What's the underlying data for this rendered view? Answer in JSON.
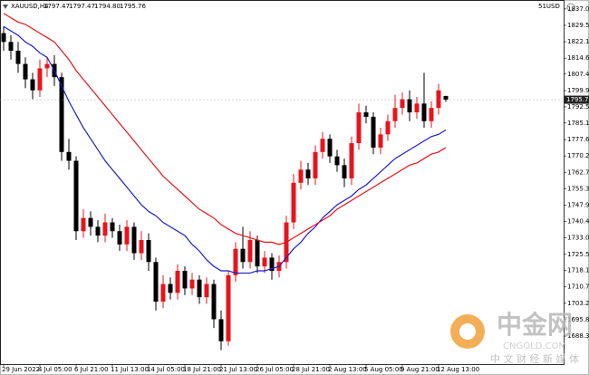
{
  "chart_data": {
    "type": "candlestick",
    "header": {
      "symbol": "XAUUSD,H4",
      "ohlc": [
        "1797.47",
        "1797.47",
        "1794.80",
        "1795.76"
      ],
      "corner": "51USD"
    },
    "categories": [
      "29 Jun 2022",
      null,
      null,
      null,
      null,
      "4 Jul 05:00",
      null,
      null,
      null,
      null,
      "6 Jul 21:00",
      null,
      null,
      null,
      null,
      "11 Jul 13:00",
      null,
      null,
      null,
      null,
      "14 Jul 05:00",
      null,
      null,
      null,
      null,
      "18 Jul 21:00",
      null,
      null,
      null,
      null,
      "21 Jul 13:00",
      null,
      null,
      null,
      null,
      "26 Jul 05:00",
      null,
      null,
      null,
      null,
      "28 Jul 21:00",
      null,
      null,
      null,
      null,
      "2 Aug 13:00",
      null,
      null,
      null,
      null,
      "5 Aug 05:00",
      null,
      null,
      null,
      null,
      "9 Aug 21:00",
      null,
      null,
      null,
      null,
      "12 Aug 13:00",
      null
    ],
    "open": [
      1826,
      1822,
      1818,
      1812,
      1805,
      1800,
      1810,
      1812,
      1806,
      1772,
      1768,
      1736,
      1742,
      1738,
      1734,
      1740,
      1736,
      1730,
      1738,
      1726,
      1732,
      1722,
      1704,
      1712,
      1708,
      1718,
      1710,
      1714,
      1706,
      1712,
      1696,
      1686,
      1716,
      1728,
      1722,
      1732,
      1720,
      1724,
      1718,
      1722,
      1740,
      1758,
      1764,
      1760,
      1772,
      1778,
      1770,
      1766,
      1760,
      1776,
      1790,
      1788,
      1774,
      1780,
      1786,
      1792,
      1796,
      1790,
      1794,
      1786,
      1792,
      1797.47
    ],
    "high": [
      1829,
      1825,
      1822,
      1815,
      1808,
      1814,
      1815,
      1816,
      1808,
      1778,
      1770,
      1746,
      1745,
      1741,
      1744,
      1742,
      1739,
      1741,
      1740,
      1736,
      1735,
      1724,
      1716,
      1715,
      1721,
      1720,
      1717,
      1716,
      1715,
      1714,
      1700,
      1718,
      1731,
      1738,
      1736,
      1734,
      1727,
      1726,
      1725,
      1743,
      1762,
      1768,
      1767,
      1775,
      1781,
      1780,
      1773,
      1769,
      1779,
      1794,
      1793,
      1790,
      1783,
      1789,
      1798,
      1799,
      1800,
      1797,
      1808,
      1795,
      1803,
      1797.47
    ],
    "low": [
      1818,
      1814,
      1808,
      1801,
      1796,
      1797,
      1806,
      1802,
      1768,
      1764,
      1732,
      1733,
      1734,
      1731,
      1731,
      1733,
      1727,
      1727,
      1723,
      1723,
      1718,
      1700,
      1701,
      1705,
      1705,
      1707,
      1707,
      1703,
      1703,
      1692,
      1682,
      1684,
      1713,
      1719,
      1719,
      1717,
      1717,
      1714,
      1715,
      1719,
      1737,
      1755,
      1757,
      1757,
      1769,
      1767,
      1763,
      1756,
      1757,
      1773,
      1785,
      1771,
      1771,
      1777,
      1783,
      1789,
      1786,
      1787,
      1783,
      1783,
      1789,
      1794.8
    ],
    "close": [
      1822,
      1818,
      1812,
      1805,
      1800,
      1810,
      1812,
      1806,
      1772,
      1768,
      1736,
      1742,
      1738,
      1734,
      1740,
      1736,
      1730,
      1738,
      1726,
      1732,
      1722,
      1704,
      1712,
      1708,
      1718,
      1710,
      1714,
      1706,
      1712,
      1696,
      1686,
      1716,
      1728,
      1722,
      1732,
      1720,
      1724,
      1718,
      1722,
      1740,
      1758,
      1764,
      1760,
      1772,
      1778,
      1770,
      1766,
      1760,
      1776,
      1790,
      1788,
      1774,
      1780,
      1786,
      1792,
      1796,
      1790,
      1794,
      1786,
      1792,
      1800,
      1795.76
    ],
    "up_color": "#e8141b",
    "down_color": "#000000",
    "series": [
      {
        "color": "#1c1ccc",
        "values": [
          1829,
          1827,
          1825,
          1822,
          1820,
          1817,
          1815,
          1809,
          1802,
          1795,
          1789,
          1783,
          1778,
          1773,
          1768,
          1764,
          1760,
          1756,
          1752,
          1748,
          1745,
          1743,
          1740,
          1738,
          1736,
          1734,
          1730,
          1727,
          1723,
          1720,
          1718,
          1718,
          1717,
          1717,
          1717,
          1718,
          1718,
          1719,
          1720,
          1724,
          1728,
          1731,
          1735,
          1738,
          1742,
          1745,
          1748,
          1750,
          1752,
          1755,
          1757,
          1760,
          1763,
          1766,
          1769,
          1771,
          1773,
          1775,
          1777,
          1779,
          1780,
          1782
        ]
      },
      {
        "color": "#e8141b",
        "values": [
          1835,
          1833,
          1831,
          1830,
          1828,
          1826,
          1824,
          1822,
          1818,
          1814,
          1809,
          1805,
          1801,
          1797,
          1793,
          1789,
          1785,
          1781,
          1777,
          1773,
          1769,
          1765,
          1761,
          1758,
          1755,
          1752,
          1749,
          1746,
          1744,
          1742,
          1739,
          1737,
          1735,
          1734,
          1733,
          1732,
          1731,
          1731,
          1730,
          1731,
          1733,
          1735,
          1737,
          1739,
          1741,
          1743,
          1746,
          1748,
          1750,
          1752,
          1754,
          1756,
          1758,
          1760,
          1762,
          1764,
          1766,
          1767,
          1769,
          1771,
          1772,
          1774
        ]
      }
    ],
    "current_price": 1795.76,
    "ylim": [
      1675.6,
      1839
    ],
    "yticks": [
      {
        "value": 1837,
        "label": "1837.00"
      },
      {
        "value": 1829.55,
        "label": "1829.55"
      },
      {
        "value": 1822.1,
        "label": "1822.10"
      },
      {
        "value": 1814.65,
        "label": "1814.65"
      },
      {
        "value": 1807.4,
        "label": "1807.40"
      },
      {
        "value": 1799.9,
        "label": "1799.90"
      },
      {
        "value": 1792.5,
        "label": "1792.50"
      },
      {
        "value": 1785.15,
        "label": "1785.15"
      },
      {
        "value": 1777.6,
        "label": "1777.60"
      },
      {
        "value": 1770.2,
        "label": "1770.20"
      },
      {
        "value": 1762.75,
        "label": "1762.75"
      },
      {
        "value": 1755.3,
        "label": "1755.30"
      },
      {
        "value": 1747.9,
        "label": "1747.90"
      },
      {
        "value": 1740.4,
        "label": "1740.40"
      },
      {
        "value": 1733,
        "label": "1733.00"
      },
      {
        "value": 1725.5,
        "label": "1725.50"
      },
      {
        "value": 1718.15,
        "label": "1718.15"
      },
      {
        "value": 1710.7,
        "label": "1710.70"
      },
      {
        "value": 1703.25,
        "label": "1703.25"
      },
      {
        "value": 1695.8,
        "label": "1695.80"
      },
      {
        "value": 1688.35,
        "label": "1688.35"
      }
    ],
    "grid": false,
    "watermark": {
      "name": "中金网",
      "site": "CNGOLD.COM",
      "slogan": "中 文 财 经 新 媒 体"
    }
  }
}
